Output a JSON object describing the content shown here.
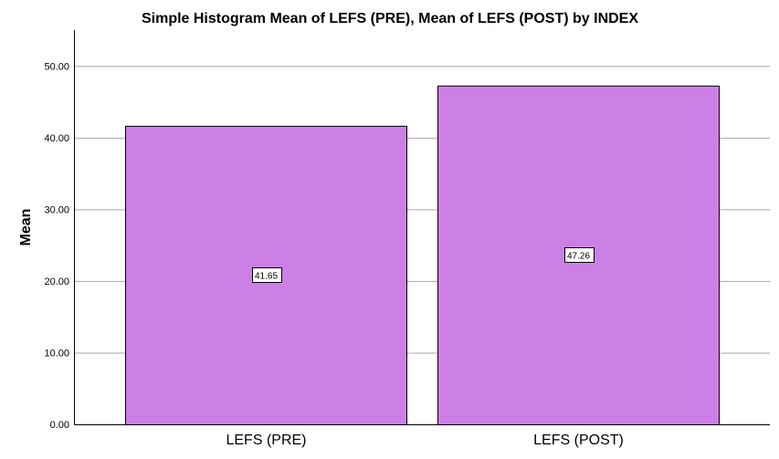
{
  "chart_data": {
    "type": "bar",
    "title": "Simple Histogram Mean of LEFS (PRE), Mean of LEFS (POST) by INDEX",
    "xlabel": "",
    "ylabel": "Mean",
    "categories": [
      "LEFS (PRE)",
      "LEFS (POST)"
    ],
    "values": [
      41.65,
      47.26
    ],
    "data_labels": [
      "41.65",
      "47.26"
    ],
    "ylim": [
      0,
      55
    ],
    "yticks": [
      0,
      10,
      20,
      30,
      40,
      50
    ],
    "ytick_labels": [
      "0.00",
      "10.00",
      "20.00",
      "30.00",
      "40.00",
      "50.00"
    ],
    "grid": true,
    "legend": "none",
    "bar_color": "#cc80e6",
    "bar_edge_color": "#000000",
    "grid_color": "#a8a8a8"
  }
}
